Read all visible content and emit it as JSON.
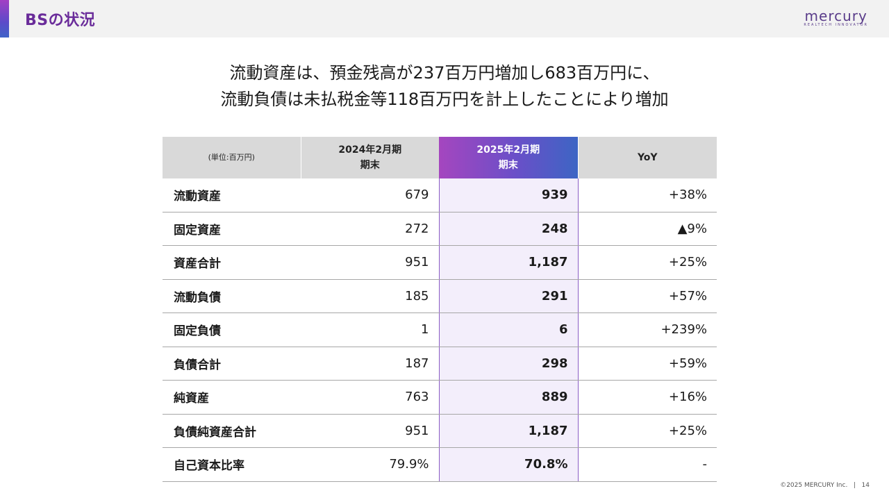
{
  "header": {
    "title": "BSの状況",
    "logo_word": "mercury",
    "logo_tagline": "REALTECH INNOVATOR"
  },
  "headline": {
    "line1": "流動資産は、預金残高が237百万円増加し683百万円に、",
    "line2": "流動負債は未払税金等118百万円を計上したことにより増加"
  },
  "table": {
    "unit_label": "(単位:百万円)",
    "columns": [
      {
        "line1": "2024年2月期",
        "line2": "期末"
      },
      {
        "line1": "2025年2月期",
        "line2": "期末"
      },
      {
        "line1": "YoY",
        "line2": ""
      }
    ],
    "rows": [
      {
        "label": "流動資産",
        "prev": "679",
        "curr": "939",
        "yoy": "+38%"
      },
      {
        "label": "固定資産",
        "prev": "272",
        "curr": "248",
        "yoy": "▲9%"
      },
      {
        "label": "資産合計",
        "prev": "951",
        "curr": "1,187",
        "yoy": "+25%"
      },
      {
        "label": "流動負債",
        "prev": "185",
        "curr": "291",
        "yoy": "+57%"
      },
      {
        "label": "固定負債",
        "prev": "1",
        "curr": "6",
        "yoy": "+239%"
      },
      {
        "label": "負債合計",
        "prev": "187",
        "curr": "298",
        "yoy": "+59%"
      },
      {
        "label": "純資産",
        "prev": "763",
        "curr": "889",
        "yoy": "+16%"
      },
      {
        "label": "負債純資産合計",
        "prev": "951",
        "curr": "1,187",
        "yoy": "+25%"
      },
      {
        "label": "自己資本比率",
        "prev": "79.9%",
        "curr": "70.8%",
        "yoy": "-"
      }
    ]
  },
  "footer": {
    "copyright": "©2025 MERCURY Inc.",
    "separator": "|",
    "page_number": "14"
  }
}
